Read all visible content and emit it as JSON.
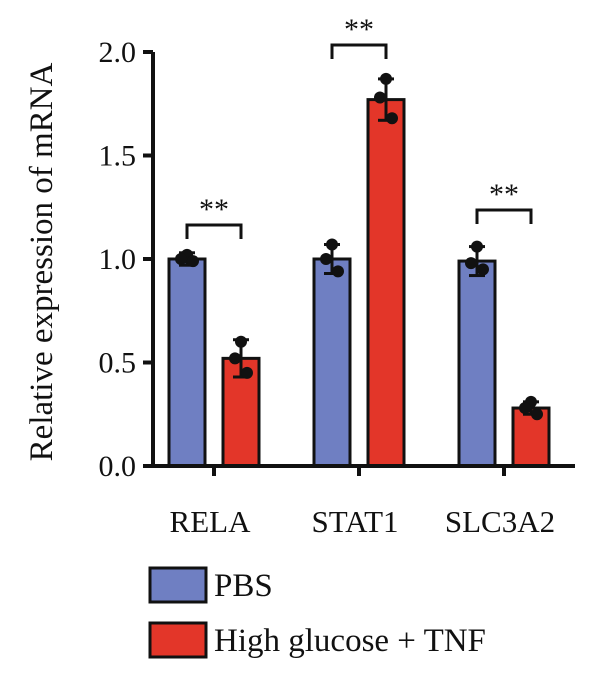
{
  "chart_data": {
    "type": "bar",
    "title": "",
    "xlabel": "",
    "ylabel": "Relative expression of mRNA",
    "ylim": [
      0,
      2.0
    ],
    "yticks": [
      "0.0",
      "0.5",
      "1.0",
      "1.5",
      "2.0"
    ],
    "categories": [
      "RELA",
      "STAT1",
      "SLC3A2"
    ],
    "series": [
      {
        "name": "PBS",
        "color": "#6f7fc2",
        "values": [
          1.0,
          1.0,
          0.99
        ],
        "errors": [
          0.03,
          0.07,
          0.07
        ],
        "points": [
          [
            1.02,
            1.0,
            0.99
          ],
          [
            1.07,
            1.0,
            0.94
          ],
          [
            1.06,
            0.98,
            0.95
          ]
        ]
      },
      {
        "name": "High glucose + TNF",
        "color": "#e33629",
        "values": [
          0.52,
          1.77,
          0.28
        ],
        "errors": [
          0.09,
          0.1,
          0.03
        ],
        "points": [
          [
            0.6,
            0.52,
            0.45
          ],
          [
            1.87,
            1.78,
            1.68
          ],
          [
            0.31,
            0.28,
            0.25
          ]
        ]
      }
    ],
    "significance": [
      {
        "category": "RELA",
        "label": "**"
      },
      {
        "category": "STAT1",
        "label": "**"
      },
      {
        "category": "SLC3A2",
        "label": "**"
      }
    ],
    "legend": {
      "placement": "bottom"
    },
    "grid": false
  }
}
